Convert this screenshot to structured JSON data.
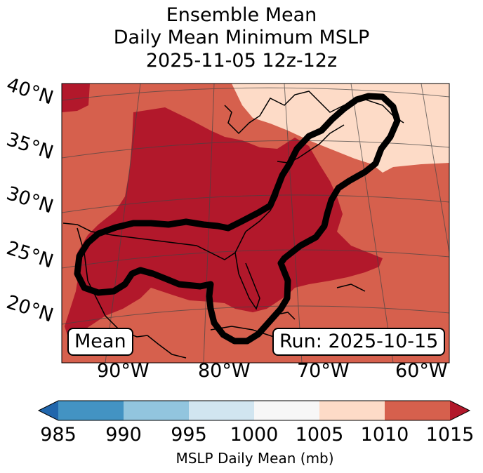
{
  "title": {
    "line1": "Ensemble Mean",
    "line2": "Daily Mean Minimum MSLP",
    "line3": "2025-11-05 12z-12z"
  },
  "map": {
    "lat_labels": [
      "40°N",
      "35°N",
      "30°N",
      "25°N",
      "20°N"
    ],
    "lon_labels": [
      "90°W",
      "80°W",
      "70°W",
      "60°W"
    ],
    "mean_tag": "Mean",
    "run_tag": "Run: 2025-10-15",
    "colors": {
      "low_1010_1015": "#d6604d",
      "mid_1005_1010": "#fddbc7",
      "deep_below_1010": "#b2182b",
      "contour": "#000000",
      "coast": "#000000"
    },
    "icons": [
      "coastline-map",
      "contour-outline"
    ]
  },
  "colorbar": {
    "ticks": [
      "985",
      "990",
      "995",
      "1000",
      "1005",
      "1010",
      "1015"
    ],
    "colors": [
      "#4393c3",
      "#92c5de",
      "#d1e5f0",
      "#f7f7f7",
      "#fddbc7",
      "#d6604d"
    ],
    "under_color": "#2166ac",
    "over_color": "#b2182b",
    "label": "MSLP Daily Mean (mb)"
  }
}
